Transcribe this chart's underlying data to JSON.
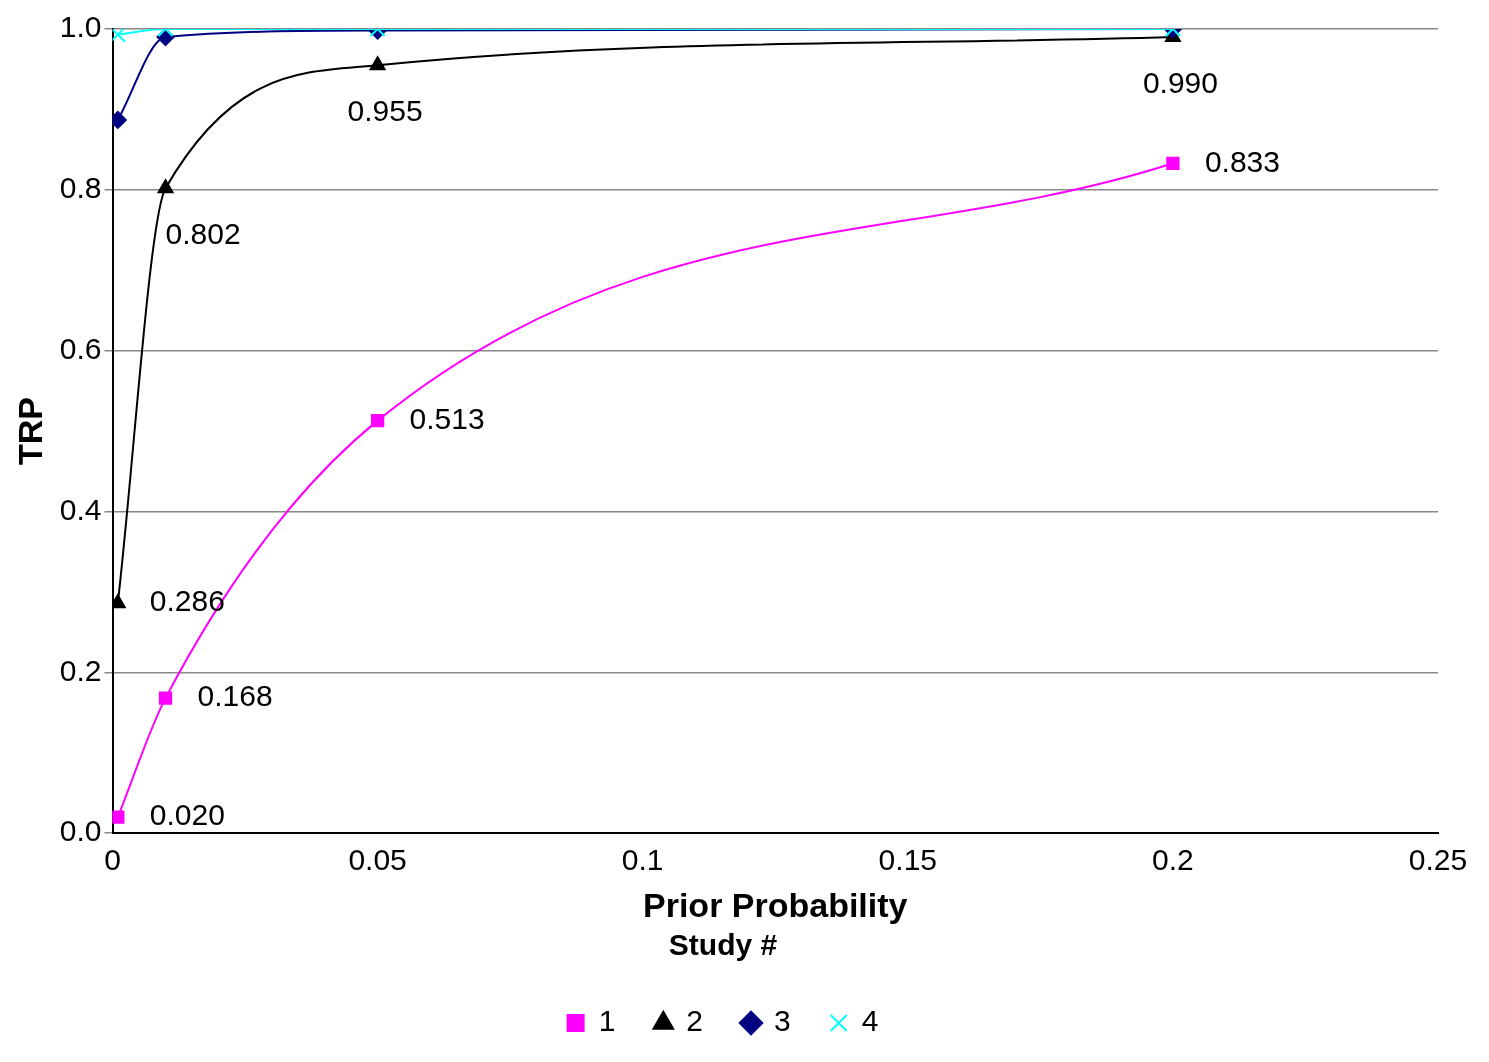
{
  "chart_data": {
    "type": "line",
    "xlabel": "Prior Probability",
    "ylabel": "TRP",
    "legend_title": "Study #",
    "legend": "bottom",
    "grid": "y",
    "xlim": [
      0,
      0.25
    ],
    "xticks": [
      0,
      0.05,
      0.1,
      0.15,
      0.2,
      0.25
    ],
    "ylim": [
      0,
      1
    ],
    "yticks": [
      {
        "value": 0,
        "label": "0.0"
      },
      0.2,
      0.4,
      0.6,
      0.8,
      {
        "value": 1,
        "label": "1.0"
      }
    ],
    "series": [
      {
        "name": "1",
        "color": "#ff00ff",
        "marker": "square",
        "x": [
          0.001,
          0.01,
          0.05,
          0.2
        ],
        "values": [
          0.02,
          0.168,
          0.513,
          0.833
        ],
        "value_labels": [
          "0.020",
          "0.168",
          "0.513",
          "0.833"
        ]
      },
      {
        "name": "2",
        "color": "#000000",
        "marker": "triangle",
        "x": [
          0.001,
          0.01,
          0.05,
          0.2
        ],
        "values": [
          0.286,
          0.802,
          0.955,
          0.99
        ],
        "value_labels": [
          "0.286",
          "0.802",
          "0.955",
          "0.990"
        ]
      },
      {
        "name": "3",
        "color": "#000080",
        "marker": "diamond",
        "x": [
          0.001,
          0.01,
          0.05,
          0.2
        ],
        "values": [
          0.887,
          0.99,
          0.998,
          1.0
        ]
      },
      {
        "name": "4",
        "color": "#00ffff",
        "marker": "cross",
        "x": [
          0.001,
          0.01,
          0.05,
          0.2
        ],
        "values": [
          0.993,
          1.0,
          1.0,
          1.0
        ]
      }
    ]
  }
}
